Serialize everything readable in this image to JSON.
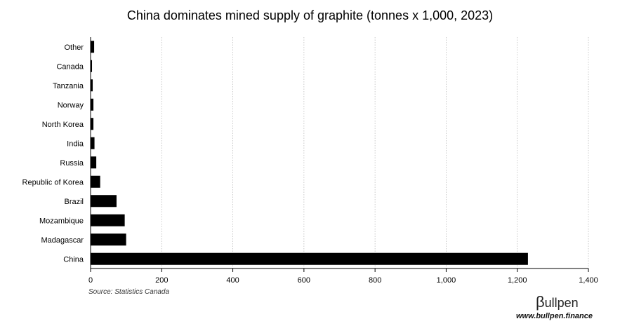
{
  "chart_data": {
    "type": "bar",
    "orientation": "horizontal",
    "title": "China dominates mined supply of graphite (tonnes x 1,000, 2023)",
    "categories": [
      "Other",
      "Canada",
      "Tanzania",
      "Norway",
      "North Korea",
      "India",
      "Russia",
      "Republic of Korea",
      "Brazil",
      "Mozambique",
      "Madagascar",
      "China"
    ],
    "values": [
      10,
      4,
      6,
      8,
      8,
      11,
      16,
      27,
      73,
      96,
      100,
      1230
    ],
    "xlim": [
      0,
      1400
    ],
    "xticks": [
      0,
      200,
      400,
      600,
      800,
      1000,
      1200,
      1400
    ],
    "xtick_labels": [
      "0",
      "200",
      "400",
      "600",
      "800",
      "1,000",
      "1,200",
      "1,400"
    ],
    "grid": "vertical dotted",
    "bar_color": "#000000",
    "source": "Source: Statistics Canada"
  },
  "brand": {
    "beta": "β",
    "name": "ullpen",
    "url": "www.bullpen.finance"
  }
}
